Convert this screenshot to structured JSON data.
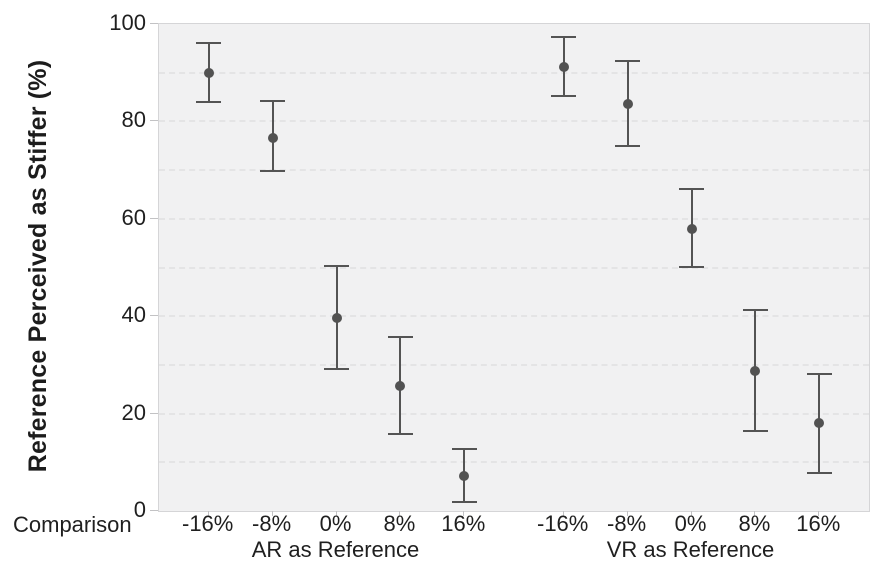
{
  "chart_data": {
    "type": "scatter",
    "subtype": "point-estimates-with-error-bars",
    "title": "",
    "ylabel": "Reference Perceived as Stiffer (%)",
    "xlabel_prefix": "Comparison",
    "ylim": [
      0,
      100
    ],
    "yticks": [
      0,
      20,
      40,
      60,
      80,
      100
    ],
    "ytick_labels": [
      "0",
      "20",
      "40",
      "60",
      "80",
      "100"
    ],
    "gridline_values": [
      10,
      20,
      30,
      40,
      50,
      60,
      70,
      80,
      90
    ],
    "grid": "horizontal dashed every 10",
    "legend_position": "none",
    "groups": [
      {
        "label": "AR as Reference",
        "categories": [
          "-16%",
          "-8%",
          "0%",
          "8%",
          "16%"
        ],
        "series": [
          {
            "name": "mean",
            "values": [
              90.0,
              76.6,
              39.7,
              25.7,
              7.2
            ]
          },
          {
            "name": "ci_low",
            "values": [
              84.0,
              69.8,
              29.1,
              15.8,
              1.8
            ]
          },
          {
            "name": "ci_high",
            "values": [
              96.0,
              84.2,
              50.3,
              35.8,
              12.8
            ]
          }
        ]
      },
      {
        "label": "VR as Reference",
        "categories": [
          "-16%",
          "-8%",
          "0%",
          "8%",
          "16%"
        ],
        "series": [
          {
            "name": "mean",
            "values": [
              91.2,
              83.6,
              58.0,
              28.8,
              18.0
            ]
          },
          {
            "name": "ci_low",
            "values": [
              85.3,
              74.9,
              50.2,
              16.5,
              7.8
            ]
          },
          {
            "name": "ci_high",
            "values": [
              97.4,
              92.4,
              66.1,
              41.2,
              28.2
            ]
          }
        ]
      }
    ],
    "colors": {
      "marker": "#525252",
      "error_bar": "#545454",
      "plot_background": "#f1f1f2",
      "plot_border": "#d5d5d7",
      "gridline": "#e4e4e5",
      "tick_text": "#1f1f1f",
      "axis_title_text": "#1c1c1c"
    }
  }
}
